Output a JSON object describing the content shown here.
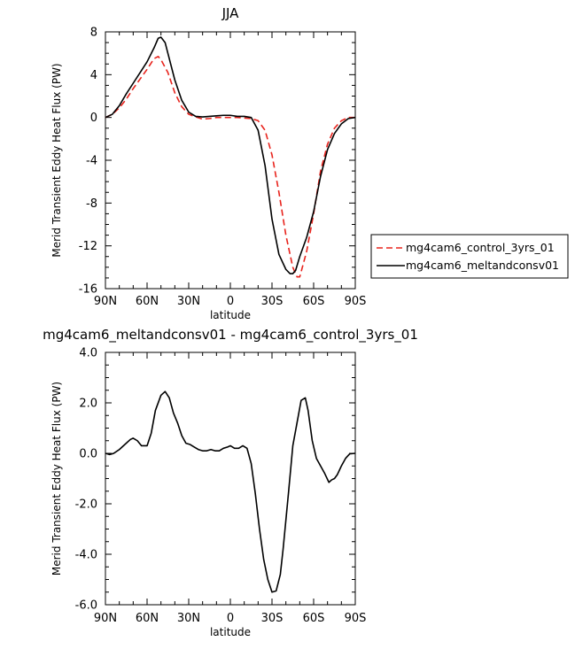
{
  "chart_data": [
    {
      "type": "line",
      "title": "JJA",
      "xlabel": "latitude",
      "ylabel": "Merid Transient Eddy Heat Flux (PW)",
      "xlim": [
        90,
        -90
      ],
      "ylim": [
        -16,
        8
      ],
      "xticks": [
        90,
        60,
        30,
        0,
        -30,
        -60,
        -90
      ],
      "xtick_labels": [
        "90N",
        "60N",
        "30N",
        "0",
        "30S",
        "60S",
        "90S"
      ],
      "yticks": [
        8,
        4,
        0,
        -4,
        -8,
        -12,
        -16
      ],
      "ytick_labels": [
        "8",
        "4",
        "0",
        "-4",
        "-8",
        "-12",
        "-16"
      ],
      "grid": false,
      "legend_position": "right, outside plot",
      "series": [
        {
          "name": "mg4cam6_control_3yrs_01",
          "color": "#e8231c",
          "style": "dashed",
          "x": [
            90,
            85,
            80,
            75,
            70,
            65,
            60,
            55,
            52,
            50,
            45,
            40,
            35,
            30,
            25,
            20,
            15,
            10,
            5,
            0,
            -5,
            -10,
            -15,
            -20,
            -25,
            -30,
            -35,
            -40,
            -45,
            -48,
            -50,
            -55,
            -60,
            -65,
            -70,
            -75,
            -80,
            -85,
            -90
          ],
          "y": [
            0,
            0.3,
            0.9,
            1.7,
            2.7,
            3.6,
            4.5,
            5.5,
            5.7,
            5.4,
            4.2,
            2.3,
            1.0,
            0.3,
            0.05,
            -0.15,
            -0.1,
            0,
            0,
            0,
            0,
            -0.05,
            -0.1,
            -0.3,
            -1.2,
            -3.5,
            -7.0,
            -11.0,
            -14.0,
            -14.9,
            -14.9,
            -12.5,
            -9.0,
            -5.0,
            -2.5,
            -1.0,
            -0.3,
            0,
            0
          ]
        },
        {
          "name": "mg4cam6_meltandconsv01",
          "color": "#000000",
          "style": "solid",
          "x": [
            90,
            85,
            80,
            75,
            70,
            65,
            60,
            55,
            52,
            50,
            47,
            45,
            40,
            35,
            30,
            25,
            20,
            15,
            10,
            5,
            0,
            -5,
            -10,
            -15,
            -20,
            -25,
            -30,
            -35,
            -40,
            -43,
            -45,
            -47,
            -50,
            -55,
            -60,
            -65,
            -70,
            -75,
            -80,
            -85,
            -90
          ],
          "y": [
            0,
            0.3,
            1.1,
            2.2,
            3.2,
            4.2,
            5.2,
            6.5,
            7.4,
            7.5,
            7.0,
            6.0,
            3.5,
            1.6,
            0.5,
            0.1,
            0.05,
            0.1,
            0.15,
            0.2,
            0.2,
            0.1,
            0.1,
            0,
            -1.2,
            -4.5,
            -9.5,
            -12.8,
            -14.2,
            -14.6,
            -14.6,
            -14.3,
            -13.0,
            -11.2,
            -8.8,
            -5.5,
            -3.0,
            -1.5,
            -0.6,
            -0.1,
            0
          ]
        }
      ]
    },
    {
      "type": "line",
      "title": "mg4cam6_meltandconsv01 - mg4cam6_control_3yrs_01",
      "xlabel": "latitude",
      "ylabel": "Merid Transient Eddy Heat Flux (PW)",
      "xlim": [
        90,
        -90
      ],
      "ylim": [
        -6,
        4
      ],
      "xticks": [
        90,
        60,
        30,
        0,
        -30,
        -60,
        -90
      ],
      "xtick_labels": [
        "90N",
        "60N",
        "30N",
        "0",
        "30S",
        "60S",
        "90S"
      ],
      "yticks": [
        4,
        2,
        0,
        -2,
        -4,
        -6
      ],
      "ytick_labels": [
        "4.0",
        "2.0",
        "0.0",
        "-2.0",
        "-4.0",
        "-6.0"
      ],
      "grid": false,
      "series": [
        {
          "name": "",
          "color": "#000000",
          "style": "solid",
          "x": [
            90,
            87,
            84,
            80,
            76,
            72,
            70,
            67,
            64,
            60,
            57,
            54,
            50,
            47,
            44,
            41,
            38,
            35,
            32,
            29,
            26,
            23,
            20,
            17,
            14,
            11,
            8,
            5,
            2,
            0,
            -3,
            -6,
            -9,
            -12,
            -15,
            -18,
            -21,
            -24,
            -27,
            -30,
            -33,
            -36,
            -38,
            -42,
            -45,
            -48,
            -51,
            -54,
            -56,
            -59,
            -62,
            -65,
            -68,
            -71,
            -73,
            -75,
            -77,
            -80,
            -83,
            -86,
            -90
          ],
          "y": [
            0,
            -0.05,
            0,
            0.15,
            0.35,
            0.55,
            0.6,
            0.5,
            0.3,
            0.3,
            0.8,
            1.7,
            2.3,
            2.45,
            2.2,
            1.6,
            1.2,
            0.7,
            0.4,
            0.35,
            0.25,
            0.15,
            0.1,
            0.1,
            0.15,
            0.1,
            0.1,
            0.2,
            0.25,
            0.3,
            0.2,
            0.2,
            0.3,
            0.2,
            -0.4,
            -1.6,
            -3.0,
            -4.2,
            -5.0,
            -5.5,
            -5.45,
            -4.8,
            -3.8,
            -1.5,
            0.3,
            1.2,
            2.1,
            2.2,
            1.7,
            0.5,
            -0.2,
            -0.5,
            -0.8,
            -1.15,
            -1.05,
            -1.0,
            -0.85,
            -0.5,
            -0.2,
            -0.02,
            0
          ]
        }
      ]
    }
  ]
}
